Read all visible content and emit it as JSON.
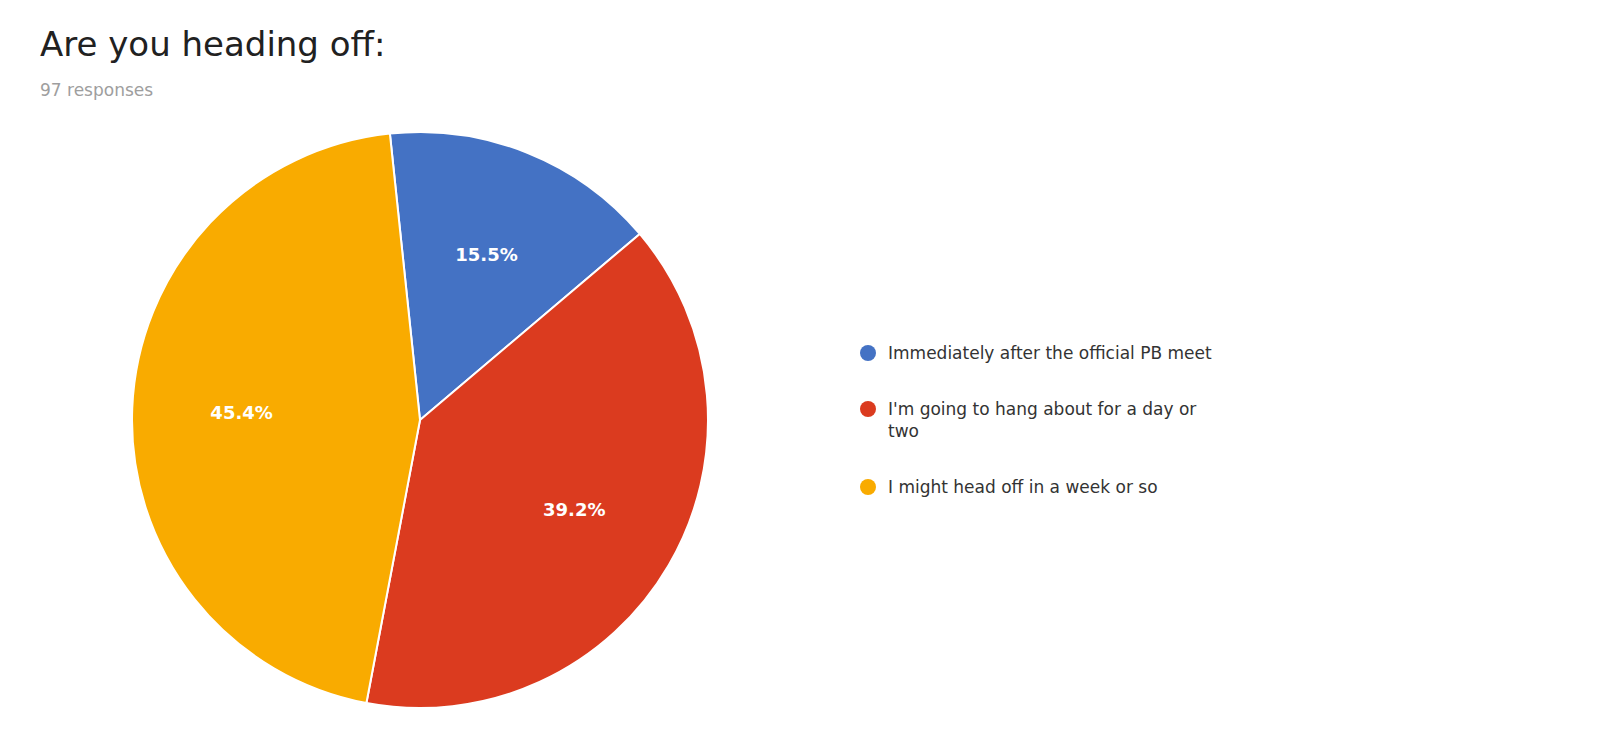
{
  "chart_data": {
    "type": "pie",
    "title": "Are you heading off:",
    "subtitle": "97 responses",
    "categories": [
      "Immediately after the official PB meet",
      "I'm going to hang about for a day or\ntwo",
      "I might head off in a week or so"
    ],
    "values": [
      15.5,
      39.2,
      45.4
    ],
    "value_labels": [
      "15.5%",
      "39.2%",
      "45.4%"
    ],
    "colors": [
      "#4472C4",
      "#DB3B1F",
      "#F9AB00"
    ],
    "data_labels": true,
    "legend": "right"
  }
}
